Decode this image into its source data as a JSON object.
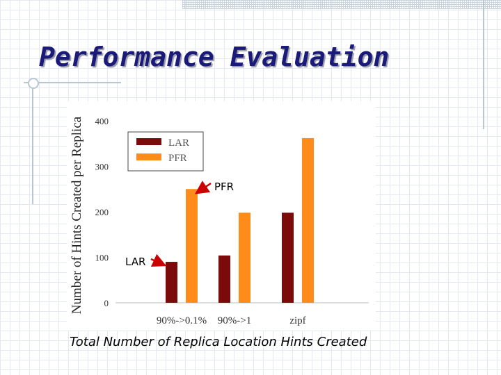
{
  "slide": {
    "title": "Performance Evaluation",
    "caption": "Total Number of Replica Location Hints Created"
  },
  "chart_data": {
    "type": "bar",
    "categories": [
      "90%->0.1%",
      "90%->1",
      "zipf"
    ],
    "series": [
      {
        "name": "LAR",
        "values": [
          90,
          104,
          198
        ],
        "color": "#7b0a0a"
      },
      {
        "name": "PFR",
        "values": [
          250,
          198,
          362
        ],
        "color": "#ff8c1a"
      }
    ],
    "ylabel": "Number of Hints Created per Replica",
    "xlabel": "",
    "ylim": [
      0,
      400
    ],
    "yticks": [
      0,
      100,
      200,
      300,
      400
    ],
    "legend": "top-left",
    "grid": false,
    "annotations": [
      {
        "text": "PFR",
        "target_series": "PFR",
        "target_category": "90%->0.1%",
        "color": "#cc0000"
      },
      {
        "text": "LAR",
        "target_series": "LAR",
        "target_category": "90%->0.1%",
        "color": "#cc0000"
      }
    ]
  }
}
